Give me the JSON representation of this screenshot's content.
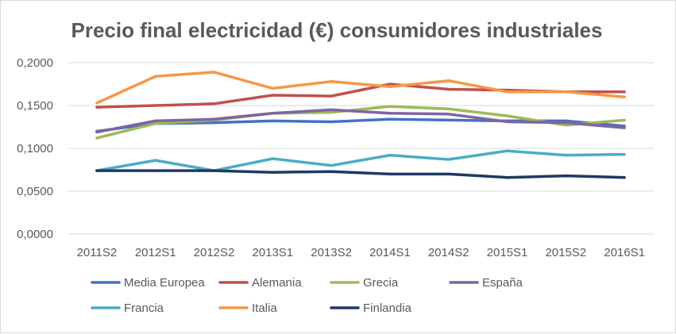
{
  "chart_data": {
    "type": "line",
    "title": "Precio  final electricidad (€) consumidores industriales",
    "xlabel": "",
    "ylabel": "",
    "categories": [
      "2011S2",
      "2012S1",
      "2012S2",
      "2013S1",
      "2013S2",
      "2014S1",
      "2014S2",
      "2015S1",
      "2015S2",
      "2016S1"
    ],
    "y_ticks": [
      "0,0000",
      "0,0500",
      "0,1000",
      "0,1500",
      "0,2000"
    ],
    "ylim": [
      0,
      0.2
    ],
    "grid": true,
    "legend_position": "bottom",
    "series": [
      {
        "name": "Media Europea",
        "color": "#4472c4",
        "values": [
          0.12,
          0.129,
          0.13,
          0.132,
          0.131,
          0.134,
          0.133,
          0.132,
          0.132,
          0.126
        ]
      },
      {
        "name": "Alemania",
        "color": "#c0504d",
        "values": [
          0.148,
          0.15,
          0.152,
          0.162,
          0.161,
          0.175,
          0.169,
          0.168,
          0.166,
          0.166
        ]
      },
      {
        "name": "Grecia",
        "color": "#9bbb59",
        "values": [
          0.112,
          0.129,
          0.133,
          0.141,
          0.142,
          0.149,
          0.146,
          0.138,
          0.127,
          0.133
        ]
      },
      {
        "name": "España",
        "color": "#8064a2",
        "values": [
          0.119,
          0.132,
          0.134,
          0.141,
          0.145,
          0.141,
          0.14,
          0.131,
          0.13,
          0.124
        ]
      },
      {
        "name": "Francia",
        "color": "#4bacc6",
        "values": [
          0.074,
          0.086,
          0.074,
          0.088,
          0.08,
          0.092,
          0.087,
          0.097,
          0.092,
          0.093
        ]
      },
      {
        "name": "Italia",
        "color": "#f79646",
        "values": [
          0.153,
          0.184,
          0.189,
          0.17,
          0.178,
          0.172,
          0.179,
          0.166,
          0.166,
          0.16
        ]
      },
      {
        "name": "Finlandia",
        "color": "#1f3864",
        "values": [
          0.074,
          0.074,
          0.074,
          0.072,
          0.073,
          0.07,
          0.07,
          0.066,
          0.068,
          0.066
        ]
      }
    ]
  }
}
